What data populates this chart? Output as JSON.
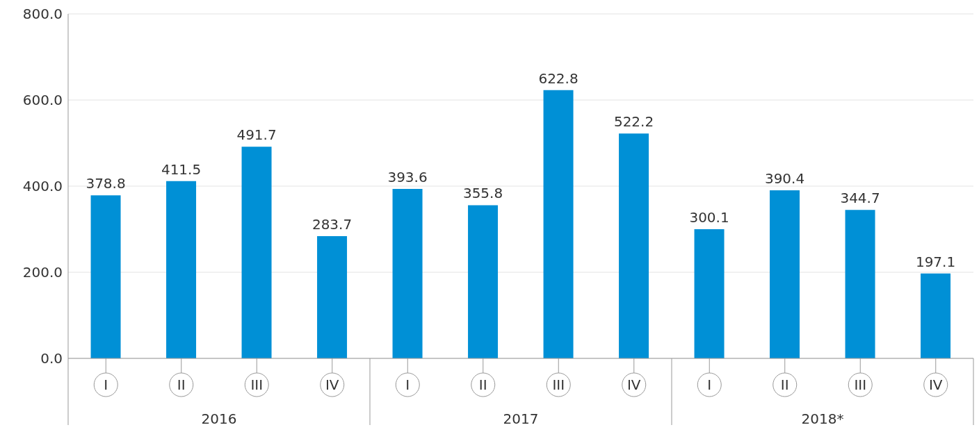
{
  "chart_data": {
    "type": "bar",
    "categories": [
      "I",
      "II",
      "III",
      "IV",
      "I",
      "II",
      "III",
      "IV",
      "I",
      "II",
      "III",
      "IV"
    ],
    "values": [
      378.8,
      411.5,
      491.7,
      283.7,
      393.6,
      355.8,
      622.8,
      522.2,
      300.1,
      390.4,
      344.7,
      197.1
    ],
    "color": "#0090d6",
    "ylim": [
      0,
      800
    ],
    "yticks": [
      {
        "value": 0,
        "label": "0.0"
      },
      {
        "value": 200,
        "label": "200.0"
      },
      {
        "value": 400,
        "label": "400.0"
      },
      {
        "value": 600,
        "label": "600.0"
      },
      {
        "value": 800,
        "label": "800.0"
      }
    ],
    "grid": "y",
    "data_labels": true,
    "annotations": [
      "2016",
      "2017",
      "2018*"
    ]
  }
}
